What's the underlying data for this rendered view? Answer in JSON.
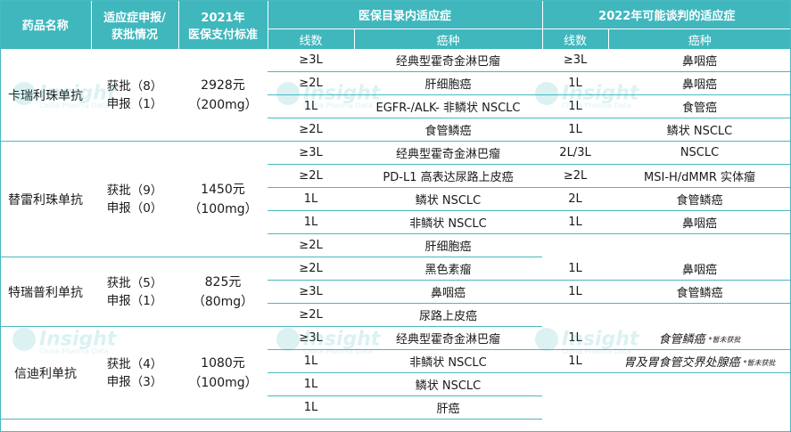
{
  "header": {
    "drug_name": "药品名称",
    "indication_status_line1": "适应症申报/",
    "indication_status_line2": "获批情况",
    "pay_std_line1": "2021年",
    "pay_std_line2": "医保支付标准",
    "catalog_title": "医保目录内适应症",
    "possible_title": "2022年可能谈判的适应症",
    "col_line": "线数",
    "col_cancer": "癌种"
  },
  "watermark": {
    "brand": "Insight",
    "sub": "China Pharma Data"
  },
  "drugs": [
    {
      "name": "卡瑞利珠单抗",
      "approved": "获批（8）",
      "filed": "申报（1）",
      "pay_amount": "2928元",
      "pay_spec": "（200mg）",
      "rows": [
        {
          "line": "≥3L",
          "cancer": "经典型霍奇金淋巴瘤",
          "line2": "≥3L",
          "cancer2": "鼻咽癌",
          "note2": ""
        },
        {
          "line": "≥2L",
          "cancer": "肝细胞癌",
          "line2": "1L",
          "cancer2": "鼻咽癌",
          "note2": ""
        },
        {
          "line": "1L",
          "cancer": "EGFR-/ALK- 非鳞状 NSCLC",
          "line2": "1L",
          "cancer2": "食管癌",
          "note2": ""
        },
        {
          "line": "≥2L",
          "cancer": "食管鳞癌",
          "line2": "1L",
          "cancer2": "鳞状 NSCLC",
          "note2": ""
        }
      ]
    },
    {
      "name": "替雷利珠单抗",
      "approved": "获批（9）",
      "filed": "申报（0）",
      "pay_amount": "1450元",
      "pay_spec": "（100mg）",
      "rows": [
        {
          "line": "≥3L",
          "cancer": "经典型霍奇金淋巴瘤",
          "line2": "2L/3L",
          "cancer2": "NSCLC",
          "note2": ""
        },
        {
          "line": "≥2L",
          "cancer": "PD-L1 高表达尿路上皮癌",
          "line2": "≥2L",
          "cancer2": "MSI-H/dMMR 实体瘤",
          "note2": ""
        },
        {
          "line": "1L",
          "cancer": "鳞状 NSCLC",
          "line2": "2L",
          "cancer2": "食管鳞癌",
          "note2": ""
        },
        {
          "line": "1L",
          "cancer": "非鳞状 NSCLC",
          "line2": "1L",
          "cancer2": "鼻咽癌",
          "note2": ""
        },
        {
          "line": "≥2L",
          "cancer": "肝细胞癌",
          "line2": "",
          "cancer2": "",
          "note2": ""
        }
      ]
    },
    {
      "name": "特瑞普利单抗",
      "approved": "获批（5）",
      "filed": "申报（1）",
      "pay_amount": "825元",
      "pay_spec": "（80mg）",
      "rows": [
        {
          "line": "≥2L",
          "cancer": "黑色素瘤",
          "line2": "1L",
          "cancer2": "鼻咽癌",
          "note2": ""
        },
        {
          "line": "≥3L",
          "cancer": "鼻咽癌",
          "line2": "1L",
          "cancer2": "食管鳞癌",
          "note2": ""
        },
        {
          "line": "≥2L",
          "cancer": "尿路上皮癌",
          "line2": "",
          "cancer2": "",
          "note2": ""
        }
      ]
    },
    {
      "name": "信迪利单抗",
      "approved": "获批（4）",
      "filed": "申报（3）",
      "pay_amount": "1080元",
      "pay_spec": "（100mg）",
      "rows": [
        {
          "line": "≥3L",
          "cancer": "经典型霍奇金淋巴瘤",
          "line2": "1L",
          "cancer2": "食管鳞癌",
          "note2": "*暂未获批"
        },
        {
          "line": "1L",
          "cancer": "非鳞状 NSCLC",
          "line2": "1L",
          "cancer2": "胃及胃食管交界处腺癌",
          "note2": "*暂未获批"
        },
        {
          "line": "1L",
          "cancer": "鳞状 NSCLC",
          "line2": "",
          "cancer2": "",
          "note2": ""
        },
        {
          "line": "1L",
          "cancer": "肝癌",
          "line2": "",
          "cancer2": "",
          "note2": ""
        }
      ]
    }
  ]
}
